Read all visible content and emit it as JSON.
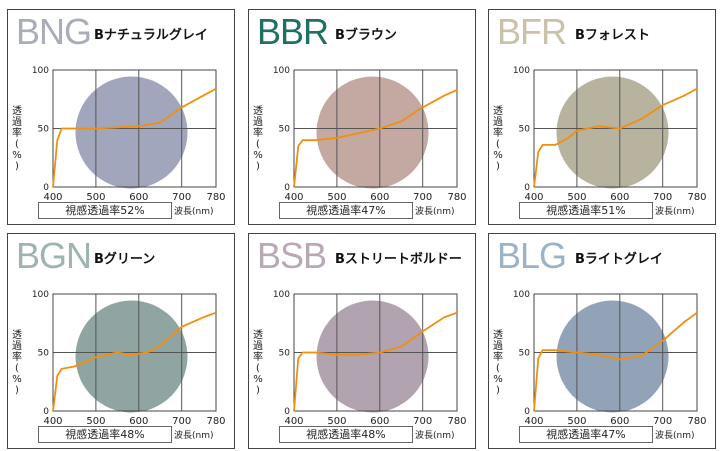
{
  "panels": [
    {
      "code": "BNG",
      "name": "Bナチュラルグレイ",
      "vlt": "視感透過率52%",
      "code_color": "#a9acb9",
      "lens_color": "#9096b0",
      "curve": [
        [
          400,
          0
        ],
        [
          410,
          40
        ],
        [
          420,
          50
        ],
        [
          450,
          50
        ],
        [
          500,
          50
        ],
        [
          550,
          51
        ],
        [
          600,
          52
        ],
        [
          650,
          55
        ],
        [
          700,
          68
        ],
        [
          750,
          78
        ],
        [
          780,
          84
        ]
      ]
    },
    {
      "code": "BBR",
      "name": "Bブラウン",
      "vlt": "視感透過率47%",
      "code_color": "#1f6f63",
      "lens_color": "#b89a92",
      "curve": [
        [
          400,
          0
        ],
        [
          410,
          35
        ],
        [
          420,
          40
        ],
        [
          450,
          40
        ],
        [
          500,
          42
        ],
        [
          550,
          46
        ],
        [
          600,
          50
        ],
        [
          650,
          56
        ],
        [
          700,
          68
        ],
        [
          750,
          78
        ],
        [
          780,
          83
        ]
      ]
    },
    {
      "code": "BFR",
      "name": "Bフォレスト",
      "vlt": "視感透過率51%",
      "code_color": "#c9c1a9",
      "lens_color": "#aca68e",
      "curve": [
        [
          400,
          0
        ],
        [
          410,
          30
        ],
        [
          420,
          36
        ],
        [
          450,
          36
        ],
        [
          480,
          42
        ],
        [
          500,
          48
        ],
        [
          550,
          52
        ],
        [
          600,
          50
        ],
        [
          650,
          58
        ],
        [
          700,
          70
        ],
        [
          750,
          78
        ],
        [
          780,
          84
        ]
      ]
    },
    {
      "code": "BGN",
      "name": "Bグリーン",
      "vlt": "視感透過率48%",
      "code_color": "#9fb3b0",
      "lens_color": "#7c9590",
      "curve": [
        [
          400,
          0
        ],
        [
          410,
          30
        ],
        [
          420,
          36
        ],
        [
          450,
          38
        ],
        [
          500,
          46
        ],
        [
          550,
          50
        ],
        [
          580,
          48
        ],
        [
          620,
          50
        ],
        [
          650,
          56
        ],
        [
          700,
          72
        ],
        [
          750,
          80
        ],
        [
          780,
          84
        ]
      ]
    },
    {
      "code": "BSB",
      "name": "Bストリートボルドー",
      "vlt": "視感透過率48%",
      "code_color": "#b9a8b6",
      "lens_color": "#a493a2",
      "curve": [
        [
          400,
          0
        ],
        [
          410,
          45
        ],
        [
          420,
          50
        ],
        [
          450,
          50
        ],
        [
          500,
          48
        ],
        [
          550,
          48
        ],
        [
          600,
          50
        ],
        [
          650,
          55
        ],
        [
          700,
          68
        ],
        [
          750,
          80
        ],
        [
          780,
          84
        ]
      ]
    },
    {
      "code": "BLG",
      "name": "Bライトグレイ",
      "vlt": "視感透過率47%",
      "code_color": "#9cb2c6",
      "lens_color": "#7f93aa",
      "curve": [
        [
          400,
          0
        ],
        [
          410,
          45
        ],
        [
          420,
          52
        ],
        [
          450,
          52
        ],
        [
          500,
          50
        ],
        [
          550,
          48
        ],
        [
          600,
          44
        ],
        [
          650,
          47
        ],
        [
          700,
          60
        ],
        [
          750,
          76
        ],
        [
          780,
          84
        ]
      ]
    }
  ],
  "chart_data": {
    "type": "line",
    "xlabel": "波長(nm)",
    "ylabel": "透過率(%)",
    "x_ticks": [
      "400",
      "500",
      "600",
      "700",
      "780"
    ],
    "y_ticks": [
      "0",
      "50",
      "100"
    ],
    "xlim": [
      400,
      780
    ],
    "ylim": [
      0,
      100
    ],
    "grid": true
  },
  "line_color": "#f0900e"
}
